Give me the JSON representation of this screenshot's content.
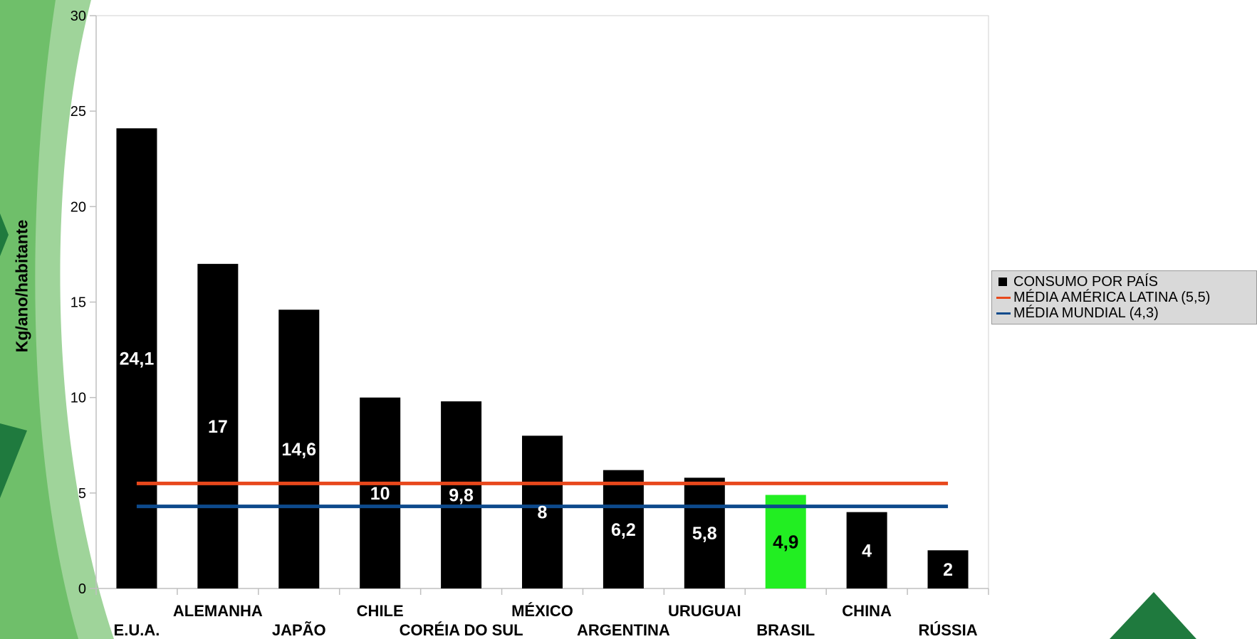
{
  "chart_data": {
    "type": "bar",
    "ylabel": "Kg/ano/habitante",
    "xlabel": "",
    "ylim": [
      0,
      30
    ],
    "yticks": [
      0,
      5,
      10,
      15,
      20,
      25,
      30
    ],
    "categories": [
      "E.U.A.",
      "ALEMANHA",
      "JAPÃO",
      "CHILE",
      "CORÉIA DO SUL",
      "MÉXICO",
      "ARGENTINA",
      "URUGUAI",
      "BRASIL",
      "CHINA",
      "RÚSSIA"
    ],
    "series": [
      {
        "name": "CONSUMO POR PAÍS",
        "type": "bar",
        "values": [
          24.1,
          17,
          14.6,
          10,
          9.8,
          8,
          6.2,
          5.8,
          4.9,
          4,
          2
        ],
        "labels": [
          "24,1",
          "17",
          "14,6",
          "10",
          "9,8",
          "8",
          "6,2",
          "5,8",
          "4,9",
          "4",
          "2"
        ],
        "color": "#000000",
        "highlight": {
          "index": 8,
          "color": "#22ee22",
          "label_color": "#000000"
        }
      },
      {
        "name": "MÉDIA AMÉRICA LATINA (5,5)",
        "type": "line",
        "value": 5.5,
        "color": "#e8481c"
      },
      {
        "name": "MÉDIA MUNDIAL (4,3)",
        "type": "line",
        "value": 4.3,
        "color": "#0d4a8c"
      }
    ],
    "grid": false,
    "legend_position": "right"
  },
  "colors": {
    "decor_green_light": "#9fd49a",
    "decor_green_mid": "#6fbf6a",
    "decor_green_dark": "#1f7a3e",
    "axis": "#bfbfbf"
  }
}
